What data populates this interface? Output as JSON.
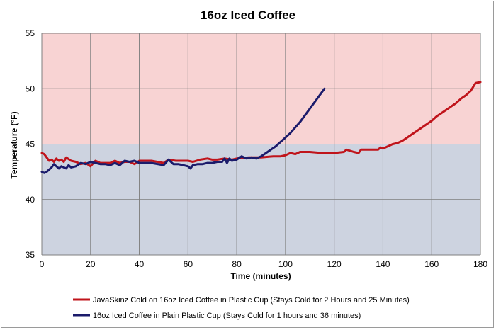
{
  "chart_data": {
    "type": "line",
    "title": "16oz Iced Coffee",
    "xlabel": "Time (minutes)",
    "ylabel": "Temperature (°F)",
    "xlim": [
      0,
      180
    ],
    "ylim": [
      35,
      55
    ],
    "xticks": [
      0,
      20,
      40,
      60,
      80,
      100,
      120,
      140,
      160,
      180
    ],
    "yticks": [
      35,
      40,
      45,
      50,
      55
    ],
    "grid": true,
    "legend_position": "bottom",
    "bands": [
      {
        "from": 35,
        "to": 45,
        "color": "#cdd3e0"
      },
      {
        "from": 45,
        "to": 55,
        "color": "#f8d3d3"
      }
    ],
    "series": [
      {
        "name": "JavaSkinz Cold on 16oz Iced Coffee in Plastic Cup (Stays Cold for 2 Hours and 25 Minutes)",
        "color": "#c0141b",
        "x": [
          0,
          1,
          2,
          3,
          4,
          5,
          6,
          7,
          8,
          9,
          10,
          12,
          14,
          16,
          18,
          20,
          22,
          24,
          26,
          28,
          30,
          32,
          34,
          36,
          38,
          40,
          45,
          50,
          52,
          55,
          60,
          62,
          65,
          68,
          70,
          72,
          75,
          78,
          80,
          85,
          90,
          95,
          98,
          100,
          102,
          104,
          106,
          110,
          115,
          120,
          124,
          125,
          128,
          130,
          131,
          132,
          135,
          138,
          139,
          140,
          142,
          144,
          146,
          148,
          150,
          152,
          154,
          156,
          158,
          160,
          162,
          164,
          166,
          168,
          170,
          172,
          174,
          176,
          178,
          180
        ],
        "y": [
          44.2,
          44.1,
          43.8,
          43.5,
          43.6,
          43.4,
          43.7,
          43.5,
          43.6,
          43.4,
          43.8,
          43.5,
          43.4,
          43.2,
          43.3,
          43.0,
          43.5,
          43.3,
          43.3,
          43.3,
          43.5,
          43.3,
          43.4,
          43.4,
          43.2,
          43.5,
          43.5,
          43.3,
          43.6,
          43.5,
          43.5,
          43.4,
          43.6,
          43.7,
          43.6,
          43.6,
          43.7,
          43.6,
          43.7,
          43.8,
          43.8,
          43.9,
          43.9,
          44.0,
          44.2,
          44.1,
          44.3,
          44.3,
          44.2,
          44.2,
          44.3,
          44.5,
          44.3,
          44.2,
          44.5,
          44.5,
          44.5,
          44.5,
          44.7,
          44.6,
          44.8,
          45.0,
          45.1,
          45.3,
          45.6,
          45.9,
          46.2,
          46.5,
          46.8,
          47.1,
          47.5,
          47.8,
          48.1,
          48.4,
          48.7,
          49.1,
          49.4,
          49.8,
          50.5,
          50.6
        ]
      },
      {
        "name": "16oz Iced Coffee in Plain Plastic Cup (Stays Cold for 1 hours and 36 minutes)",
        "color": "#1b1b6b",
        "x": [
          0,
          1,
          2,
          3,
          4,
          5,
          6,
          7,
          8,
          9,
          10,
          11,
          12,
          14,
          16,
          18,
          20,
          22,
          24,
          26,
          28,
          30,
          32,
          34,
          36,
          38,
          40,
          45,
          50,
          52,
          54,
          56,
          58,
          60,
          61,
          62,
          64,
          66,
          68,
          70,
          72,
          74,
          75,
          76,
          77,
          78,
          80,
          82,
          84,
          86,
          88,
          90,
          92,
          94,
          96,
          98,
          100,
          102,
          104,
          106,
          108,
          110,
          112,
          114,
          116
        ],
        "y": [
          42.5,
          42.4,
          42.5,
          42.7,
          42.9,
          43.2,
          43.0,
          42.8,
          43.0,
          42.9,
          42.8,
          43.1,
          42.9,
          43.0,
          43.3,
          43.2,
          43.4,
          43.3,
          43.2,
          43.2,
          43.1,
          43.3,
          43.1,
          43.5,
          43.4,
          43.5,
          43.3,
          43.3,
          43.1,
          43.6,
          43.2,
          43.2,
          43.1,
          43.0,
          42.8,
          43.1,
          43.2,
          43.2,
          43.3,
          43.3,
          43.4,
          43.4,
          43.7,
          43.3,
          43.7,
          43.5,
          43.6,
          43.9,
          43.7,
          43.8,
          43.7,
          43.9,
          44.2,
          44.5,
          44.8,
          45.2,
          45.6,
          46.0,
          46.5,
          47.0,
          47.6,
          48.2,
          48.8,
          49.4,
          50.0
        ]
      }
    ]
  }
}
